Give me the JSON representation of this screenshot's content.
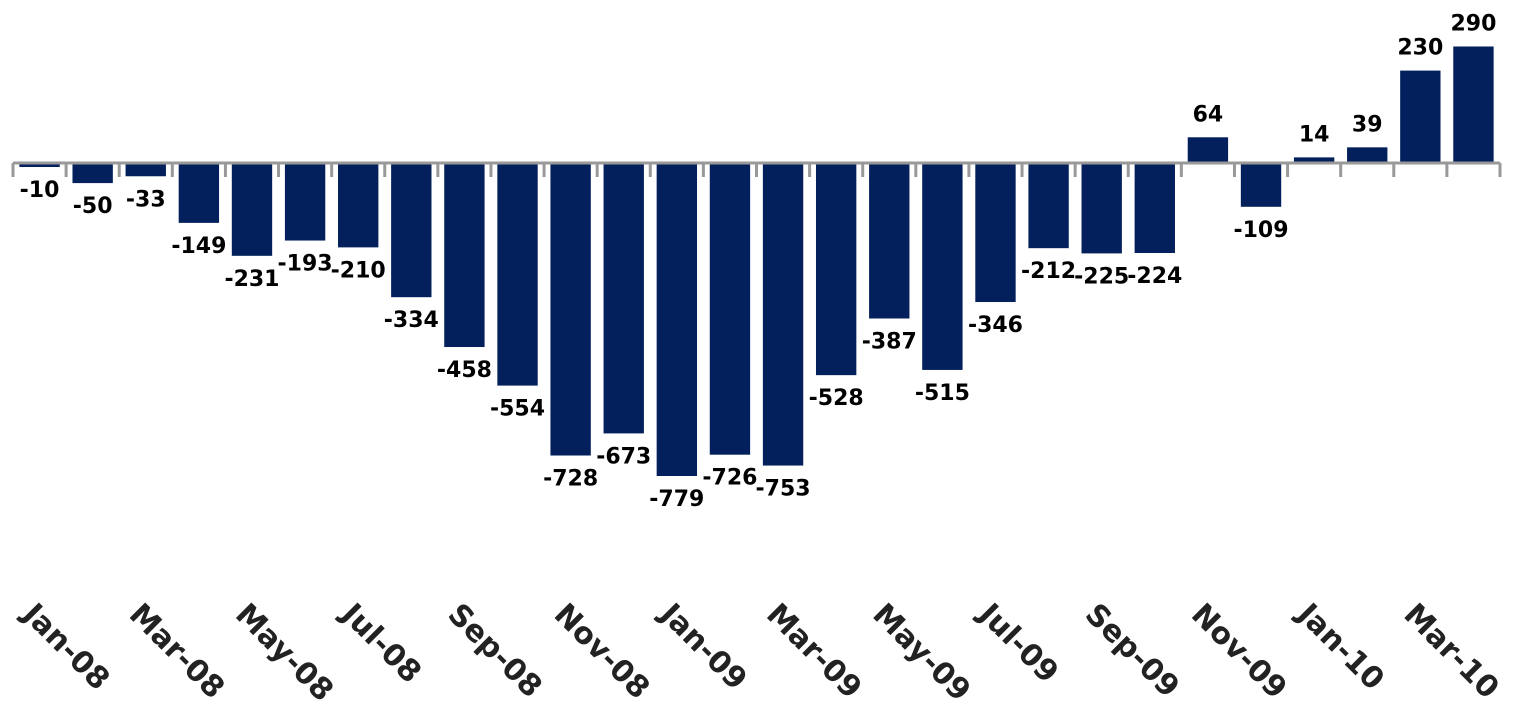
{
  "chart_data": {
    "type": "bar",
    "categories": [
      "Jan-08",
      null,
      "Mar-08",
      null,
      "May-08",
      null,
      "Jul-08",
      null,
      "Sep-08",
      null,
      "Nov-08",
      null,
      "Jan-09",
      null,
      "Mar-09",
      null,
      "May-09",
      null,
      "Jul-09",
      null,
      "Sep-09",
      null,
      "Nov-09",
      null,
      "Jan-10",
      null,
      "Mar-10",
      null
    ],
    "values": [
      -10,
      -50,
      -33,
      -149,
      -231,
      -193,
      -210,
      -334,
      -458,
      -554,
      -728,
      -673,
      -779,
      -726,
      -753,
      -528,
      -387,
      -515,
      -346,
      -212,
      -225,
      -224,
      64,
      -109,
      14,
      39,
      230,
      290
    ],
    "color": "#03205c",
    "grid": false
  }
}
